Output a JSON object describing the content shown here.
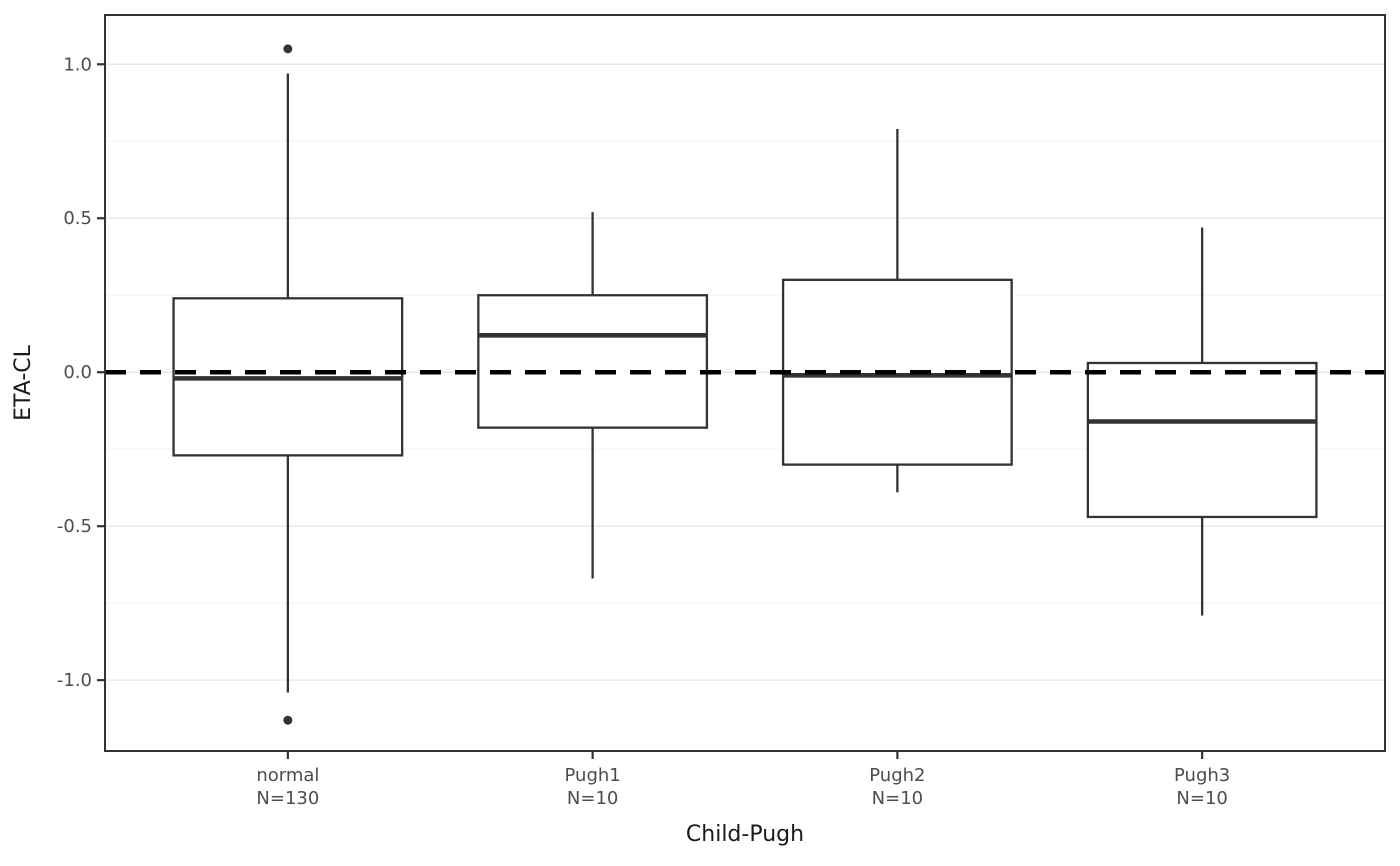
{
  "chart_data": {
    "type": "boxplot",
    "title": "",
    "xlabel": "Child-Pugh",
    "ylabel": "ETA-CL",
    "ylim": [
      -1.23,
      1.16
    ],
    "grid": true,
    "legend": "none",
    "y_major_ticks": [
      {
        "value": 1.0,
        "label": "1.0"
      },
      {
        "value": 0.5,
        "label": "0.5"
      },
      {
        "value": 0.0,
        "label": "0.0"
      },
      {
        "value": -0.5,
        "label": "-0.5"
      },
      {
        "value": -1.0,
        "label": "-1.0"
      }
    ],
    "y_minor_ticks": [
      0.75,
      0.25,
      -0.25,
      -0.75
    ],
    "reference_line": {
      "y": 0.0,
      "style": "dashed",
      "color": "#000000"
    },
    "categories": [
      {
        "label": "normal",
        "sublabel": "N=130",
        "whisker_low": -1.04,
        "q1": -0.27,
        "median": -0.02,
        "q3": 0.24,
        "whisker_high": 0.97,
        "outliers": [
          1.05,
          -1.13
        ]
      },
      {
        "label": "Pugh1",
        "sublabel": "N=10",
        "whisker_low": -0.67,
        "q1": -0.18,
        "median": 0.12,
        "q3": 0.25,
        "whisker_high": 0.52,
        "outliers": []
      },
      {
        "label": "Pugh2",
        "sublabel": "N=10",
        "whisker_low": -0.39,
        "q1": -0.3,
        "median": -0.01,
        "q3": 0.3,
        "whisker_high": 0.79,
        "outliers": []
      },
      {
        "label": "Pugh3",
        "sublabel": "N=10",
        "whisker_low": -0.79,
        "q1": -0.47,
        "median": -0.16,
        "q3": 0.03,
        "whisker_high": 0.47,
        "outliers": []
      }
    ]
  },
  "style": {
    "box_line_color": "#333333",
    "box_fill_color": "#ffffff",
    "reference_line_color": "#000000",
    "panel_border_color": "#333333",
    "major_grid_color": "#e9e9e9",
    "minor_grid_color": "#f4f4f4",
    "tick_label_color": "#4d4d4d",
    "axis_title_color": "#1a1a1a",
    "background_color": "#ffffff"
  }
}
